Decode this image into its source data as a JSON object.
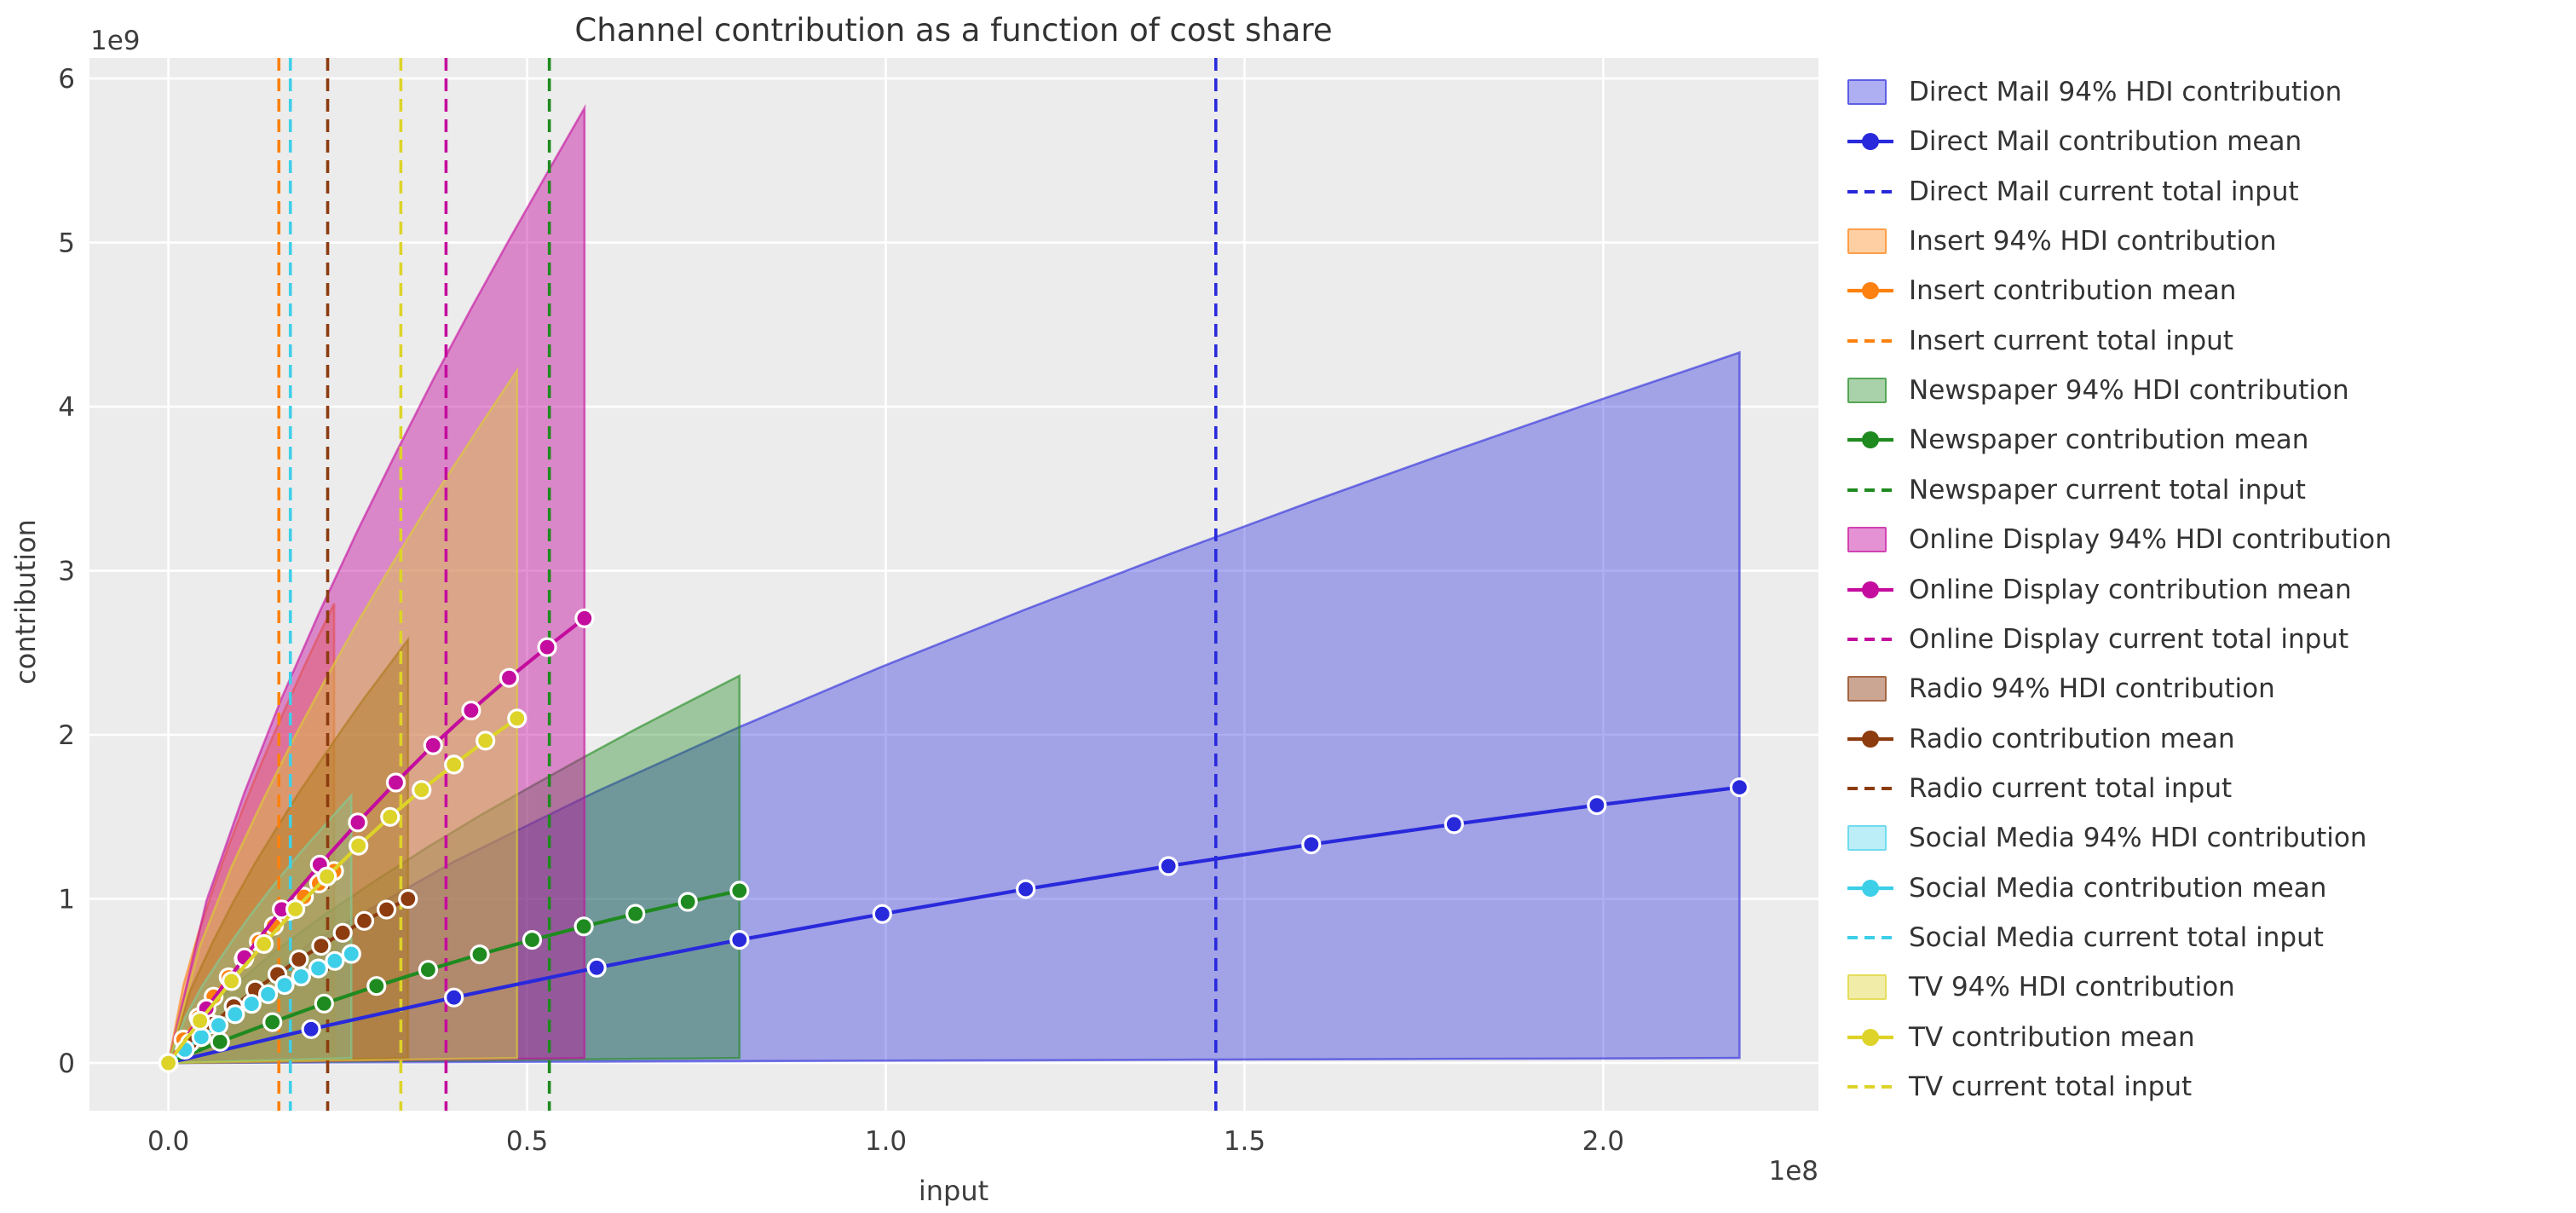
{
  "title": "Channel contribution as a function of cost share",
  "figure": {
    "plot_background": "#ececec",
    "grid_color": "#ffffff",
    "text_color": "#333333",
    "tick_color": "#3d3d3d"
  },
  "axes": {
    "xlabel": "input",
    "ylabel": "contribution",
    "x_offset_label": "1e8",
    "y_offset_label": "1e9",
    "x_tick_labels": [
      "0.0",
      "0.5",
      "1.0",
      "1.5",
      "2.0"
    ],
    "x_tick_values_e8": [
      0,
      0.5,
      1.0,
      1.5,
      2.0
    ],
    "y_tick_labels": [
      "0",
      "1",
      "2",
      "3",
      "4",
      "5",
      "6"
    ],
    "y_tick_values_e9": [
      0,
      1,
      2,
      3,
      4,
      5,
      6
    ],
    "xlim_e8": [
      -0.11,
      2.3
    ],
    "ylim_e9": [
      -0.291,
      6.125
    ],
    "grid": true
  },
  "chart_data": {
    "type": "line",
    "title": "Channel contribution as a function of cost share",
    "xlabel": "input",
    "ylabel": "contribution",
    "x_unit_multiplier": "1e8",
    "y_unit_multiplier": "1e9",
    "xlim_e8": [
      -0.11,
      2.3
    ],
    "ylim_e9": [
      -0.291,
      6.125
    ],
    "legend_position": "right-outside",
    "grid": true,
    "hdi_lower_e9_shared": [
      0,
      0.003,
      0.005,
      0.008,
      0.011,
      0.014,
      0.016,
      0.019,
      0.022,
      0.025,
      0.027,
      0.03
    ],
    "channels": [
      {
        "name": "Direct Mail",
        "color": "#2929dc",
        "band_alpha": 0.38,
        "current_total_input_e8": 1.46,
        "x_e8": [
          0,
          0.199,
          0.398,
          0.597,
          0.796,
          0.995,
          1.195,
          1.394,
          1.593,
          1.792,
          1.991,
          2.19
        ],
        "mean_e9": [
          0,
          0.206,
          0.399,
          0.58,
          0.75,
          0.908,
          1.059,
          1.2,
          1.332,
          1.455,
          1.571,
          1.68
        ],
        "hdi_upper_e9": [
          0,
          0.734,
          1.227,
          1.655,
          2.048,
          2.416,
          2.765,
          3.099,
          3.421,
          3.732,
          4.035,
          4.33
        ]
      },
      {
        "name": "Insert",
        "color": "#fd810e",
        "band_alpha": 0.38,
        "current_total_input_e8": 0.154,
        "x_e8": [
          0,
          0.021,
          0.042,
          0.063,
          0.084,
          0.105,
          0.126,
          0.147,
          0.168,
          0.189,
          0.21,
          0.231
        ],
        "mean_e9": [
          0,
          0.143,
          0.278,
          0.404,
          0.522,
          0.633,
          0.738,
          0.836,
          0.927,
          1.013,
          1.094,
          1.17
        ],
        "hdi_upper_e9": [
          0,
          0.475,
          0.793,
          1.07,
          1.324,
          1.562,
          1.788,
          2.004,
          2.212,
          2.414,
          2.609,
          2.8
        ]
      },
      {
        "name": "Newspaper",
        "color": "#1f8a1f",
        "band_alpha": 0.38,
        "current_total_input_e8": 0.531,
        "x_e8": [
          0,
          0.072,
          0.145,
          0.217,
          0.29,
          0.362,
          0.434,
          0.507,
          0.579,
          0.651,
          0.724,
          0.796
        ],
        "mean_e9": [
          0,
          0.129,
          0.249,
          0.362,
          0.469,
          0.568,
          0.662,
          0.75,
          0.832,
          0.909,
          0.982,
          1.05
        ],
        "hdi_upper_e9": [
          0,
          0.4,
          0.669,
          0.902,
          1.116,
          1.317,
          1.507,
          1.689,
          1.864,
          2.034,
          2.199,
          2.36
        ]
      },
      {
        "name": "Online Display",
        "color": "#c40d9e",
        "band_alpha": 0.45,
        "current_total_input_e8": 0.387,
        "x_e8": [
          0,
          0.053,
          0.106,
          0.158,
          0.211,
          0.264,
          0.317,
          0.369,
          0.422,
          0.475,
          0.528,
          0.58
        ],
        "mean_e9": [
          0,
          0.332,
          0.643,
          0.936,
          1.209,
          1.466,
          1.709,
          1.936,
          2.148,
          2.347,
          2.534,
          2.71
        ],
        "hdi_upper_e9": [
          0,
          0.987,
          1.649,
          2.225,
          2.753,
          3.248,
          3.717,
          4.165,
          4.598,
          5.017,
          5.424,
          5.82
        ]
      },
      {
        "name": "Radio",
        "color": "#8c3c0f",
        "band_alpha": 0.45,
        "current_total_input_e8": 0.222,
        "x_e8": [
          0,
          0.03,
          0.061,
          0.091,
          0.121,
          0.152,
          0.182,
          0.213,
          0.243,
          0.273,
          0.304,
          0.334
        ],
        "mean_e9": [
          0,
          0.123,
          0.237,
          0.345,
          0.446,
          0.541,
          0.631,
          0.714,
          0.793,
          0.866,
          0.935,
          1.0
        ],
        "hdi_upper_e9": [
          0,
          0.437,
          0.731,
          0.986,
          1.22,
          1.44,
          1.648,
          1.847,
          2.038,
          2.224,
          2.404,
          2.58
        ]
      },
      {
        "name": "Social Media",
        "color": "#3ecfe8",
        "band_alpha": 0.35,
        "current_total_input_e8": 0.17,
        "x_e8": [
          0,
          0.023,
          0.046,
          0.07,
          0.093,
          0.116,
          0.139,
          0.162,
          0.185,
          0.209,
          0.232,
          0.255
        ],
        "mean_e9": [
          0,
          0.081,
          0.158,
          0.23,
          0.297,
          0.36,
          0.419,
          0.475,
          0.527,
          0.576,
          0.622,
          0.665
        ],
        "hdi_upper_e9": [
          0,
          0.276,
          0.462,
          0.623,
          0.771,
          0.91,
          1.041,
          1.167,
          1.288,
          1.405,
          1.519,
          1.63
        ]
      },
      {
        "name": "TV",
        "color": "#ddd329",
        "band_alpha": 0.4,
        "current_total_input_e8": 0.324,
        "x_e8": [
          0,
          0.044,
          0.088,
          0.133,
          0.177,
          0.221,
          0.265,
          0.309,
          0.353,
          0.398,
          0.442,
          0.486
        ],
        "mean_e9": [
          0,
          0.257,
          0.499,
          0.725,
          0.937,
          1.136,
          1.324,
          1.5,
          1.664,
          1.819,
          1.964,
          2.1
        ],
        "hdi_upper_e9": [
          0,
          0.715,
          1.196,
          1.613,
          1.996,
          2.355,
          2.695,
          3.02,
          3.334,
          3.638,
          3.933,
          4.22
        ]
      }
    ]
  },
  "legend": {
    "entries": [
      {
        "label": "Direct Mail 94% HDI contribution",
        "type": "patch",
        "channel": "Direct Mail"
      },
      {
        "label": "Direct Mail contribution mean",
        "type": "line",
        "channel": "Direct Mail"
      },
      {
        "label": "Direct Mail current total input",
        "type": "dashed",
        "channel": "Direct Mail"
      },
      {
        "label": "Insert 94% HDI contribution",
        "type": "patch",
        "channel": "Insert"
      },
      {
        "label": "Insert contribution mean",
        "type": "line",
        "channel": "Insert"
      },
      {
        "label": "Insert current total input",
        "type": "dashed",
        "channel": "Insert"
      },
      {
        "label": "Newspaper 94% HDI contribution",
        "type": "patch",
        "channel": "Newspaper"
      },
      {
        "label": "Newspaper contribution mean",
        "type": "line",
        "channel": "Newspaper"
      },
      {
        "label": "Newspaper current total input",
        "type": "dashed",
        "channel": "Newspaper"
      },
      {
        "label": "Online Display 94% HDI contribution",
        "type": "patch",
        "channel": "Online Display"
      },
      {
        "label": "Online Display contribution mean",
        "type": "line",
        "channel": "Online Display"
      },
      {
        "label": "Online Display current total input",
        "type": "dashed",
        "channel": "Online Display"
      },
      {
        "label": "Radio 94% HDI contribution",
        "type": "patch",
        "channel": "Radio"
      },
      {
        "label": "Radio contribution mean",
        "type": "line",
        "channel": "Radio"
      },
      {
        "label": "Radio current total input",
        "type": "dashed",
        "channel": "Radio"
      },
      {
        "label": "Social Media 94% HDI contribution",
        "type": "patch",
        "channel": "Social Media"
      },
      {
        "label": "Social Media contribution mean",
        "type": "line",
        "channel": "Social Media"
      },
      {
        "label": "Social Media current total input",
        "type": "dashed",
        "channel": "Social Media"
      },
      {
        "label": "TV 94% HDI contribution",
        "type": "patch",
        "channel": "TV"
      },
      {
        "label": "TV contribution mean",
        "type": "line",
        "channel": "TV"
      },
      {
        "label": "TV current total input",
        "type": "dashed",
        "channel": "TV"
      }
    ]
  }
}
